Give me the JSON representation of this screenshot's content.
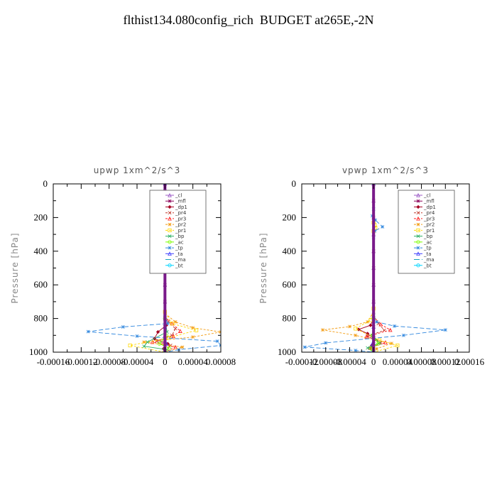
{
  "figure": {
    "title": "flthist134.080config_rich  BUDGET at265E,-2N"
  },
  "chart_data": [
    {
      "type": "line",
      "title": "upwp   1xm^2/s^3",
      "xlabel": "",
      "ylabel": "Pressure [hPa]",
      "ylim": [
        0,
        1000
      ],
      "y_inverted": true,
      "xlim": [
        -0.00016,
        8e-05
      ],
      "x_tick_values": [
        -0.00016,
        -0.00012,
        -8e-05,
        -4e-05,
        0,
        4e-05,
        8e-05
      ],
      "x_tick_labels": [
        "-0.00016",
        "-0.00012",
        "-0.00008",
        "-0.00004",
        "0",
        "0.00004",
        "0.00008"
      ],
      "y_tick_values": [
        0,
        200,
        400,
        600,
        800,
        1000
      ],
      "y_tick_labels": [
        "0",
        "200",
        "400",
        "600",
        "800",
        "1000"
      ],
      "legend_position": "top-right",
      "series": [
        {
          "name": "_cl",
          "color": "#9b59c6",
          "marker": "triangle",
          "dash": "",
          "points": [
            [
              0,
              0
            ],
            [
              0,
              100
            ],
            [
              0,
              200
            ],
            [
              0,
              300
            ],
            [
              0,
              400
            ],
            [
              0,
              500
            ],
            [
              0,
              600
            ],
            [
              0,
              700
            ],
            [
              0,
              800
            ],
            [
              0,
              900
            ],
            [
              0,
              1000
            ]
          ]
        },
        {
          "name": "_mfl",
          "color": "#8b0057",
          "marker": "star",
          "dash": "",
          "points": [
            [
              0,
              0
            ],
            [
              0,
              100
            ],
            [
              0,
              200
            ],
            [
              0,
              300
            ],
            [
              0,
              400
            ],
            [
              0,
              500
            ],
            [
              0,
              600
            ],
            [
              0,
              700
            ],
            [
              0,
              800
            ],
            [
              0,
              850
            ],
            [
              0,
              900
            ],
            [
              0,
              950
            ],
            [
              0,
              1000
            ]
          ]
        },
        {
          "name": "_dp1",
          "color": "#a50021",
          "marker": "diamond",
          "dash": "",
          "points": [
            [
              0,
              800
            ],
            [
              2e-06,
              840
            ],
            [
              -1e-05,
              880
            ],
            [
              -1.5e-05,
              920
            ],
            [
              4e-06,
              950
            ],
            [
              -2e-06,
              980
            ],
            [
              0,
              1000
            ]
          ]
        },
        {
          "name": "_pr4",
          "color": "#c0392b",
          "marker": "cross",
          "dash": "3,2",
          "points": [
            [
              0,
              780
            ],
            [
              5e-06,
              820
            ],
            [
              1.5e-05,
              860
            ],
            [
              1e-05,
              900
            ],
            [
              -1.2e-05,
              935
            ],
            [
              8e-06,
              960
            ],
            [
              0,
              1000
            ]
          ]
        },
        {
          "name": "_pr3",
          "color": "#ff2020",
          "marker": "triangle",
          "dash": "3,2",
          "points": [
            [
              0,
              790
            ],
            [
              1e-05,
              830
            ],
            [
              2.2e-05,
              875
            ],
            [
              1.2e-05,
              905
            ],
            [
              -1.8e-05,
              940
            ],
            [
              1.5e-05,
              970
            ],
            [
              0,
              1000
            ]
          ]
        },
        {
          "name": "_pr2",
          "color": "#f39c12",
          "marker": "star",
          "dash": "3,2",
          "points": [
            [
              0,
              770
            ],
            [
              1.5e-05,
              820
            ],
            [
              4e-05,
              855
            ],
            [
              8e-05,
              880
            ],
            [
              4e-05,
              910
            ],
            [
              -3e-05,
              940
            ],
            [
              2.5e-05,
              970
            ],
            [
              0,
              1000
            ]
          ]
        },
        {
          "name": "_pr1",
          "color": "#ffd700",
          "marker": "square",
          "dash": "3,2",
          "points": [
            [
              0,
              190
            ],
            [
              -5e-06,
              210
            ],
            [
              -6e-06,
              235
            ],
            [
              -4e-06,
              260
            ],
            [
              0,
              300
            ],
            [
              0,
              760
            ],
            [
              1e-05,
              830
            ],
            [
              4.5e-05,
              870
            ],
            [
              5e-06,
              915
            ],
            [
              -5e-05,
              960
            ],
            [
              0,
              1000
            ]
          ]
        },
        {
          "name": "_bp",
          "color": "#27ae60",
          "marker": "cross",
          "dash": "",
          "points": [
            [
              0,
              800
            ],
            [
              3e-06,
              880
            ],
            [
              -2.5e-05,
              940
            ],
            [
              -3e-05,
              965
            ],
            [
              3e-06,
              985
            ],
            [
              0,
              1000
            ]
          ]
        },
        {
          "name": "_ac",
          "color": "#7dff00",
          "marker": "circle",
          "dash": "",
          "points": [
            [
              0,
              800
            ],
            [
              2e-06,
              900
            ],
            [
              -8e-06,
              950
            ],
            [
              6e-06,
              975
            ],
            [
              0,
              1000
            ]
          ]
        },
        {
          "name": "_tp",
          "color": "#2e86de",
          "marker": "star",
          "dash": "6,3",
          "points": [
            [
              0,
              190
            ],
            [
              -2e-06,
              220
            ],
            [
              1e-05,
              235
            ],
            [
              -8e-06,
              330
            ],
            [
              -6e-06,
              380
            ],
            [
              0,
              420
            ],
            [
              0,
              790
            ],
            [
              4e-06,
              830
            ],
            [
              -6e-05,
              850
            ],
            [
              -0.00011,
              878
            ],
            [
              -4e-05,
              905
            ],
            [
              7.5e-05,
              935
            ],
            [
              8e-05,
              960
            ],
            [
              2e-05,
              985
            ],
            [
              0,
              1000
            ]
          ]
        },
        {
          "name": "_ta",
          "color": "#4040ff",
          "marker": "triangle",
          "dash": "",
          "points": [
            [
              0,
              850
            ],
            [
              2e-06,
              950
            ],
            [
              0,
              1000
            ]
          ]
        },
        {
          "name": "_ma",
          "color": "#17a2b8",
          "marker": "none",
          "dash": "8,3",
          "points": [
            [
              0,
              900
            ],
            [
              0,
              1000
            ]
          ]
        },
        {
          "name": "_bt",
          "color": "#00d5ff",
          "marker": "circle",
          "dash": "",
          "points": [
            [
              0,
              0
            ],
            [
              0,
              1000
            ]
          ]
        }
      ]
    },
    {
      "type": "line",
      "title": "vpwp   1xm^2/s^3",
      "xlabel": "",
      "ylabel": "Pressure [hPa]",
      "ylim": [
        0,
        1000
      ],
      "y_inverted": true,
      "xlim": [
        -0.00012,
        0.00016
      ],
      "x_tick_values": [
        -0.00012,
        -8e-05,
        -4e-05,
        0,
        4e-05,
        8e-05,
        0.00012,
        0.00016
      ],
      "x_tick_labels": [
        "-0.00012",
        "-0.00008",
        "-0.00004",
        "0",
        "0.00004",
        "0.00008",
        "0.00012",
        "0.00016"
      ],
      "y_tick_values": [
        0,
        200,
        400,
        600,
        800,
        1000
      ],
      "y_tick_labels": [
        "0",
        "200",
        "400",
        "600",
        "800",
        "1000"
      ],
      "legend_position": "top-right",
      "series": [
        {
          "name": "_cl",
          "color": "#9b59c6",
          "marker": "triangle",
          "dash": "",
          "points": [
            [
              0,
              0
            ],
            [
              0,
              100
            ],
            [
              0,
              200
            ],
            [
              0,
              300
            ],
            [
              0,
              400
            ],
            [
              0,
              500
            ],
            [
              0,
              600
            ],
            [
              0,
              700
            ],
            [
              0,
              800
            ],
            [
              0,
              900
            ],
            [
              0,
              1000
            ]
          ]
        },
        {
          "name": "_mfl",
          "color": "#8b0057",
          "marker": "star",
          "dash": "",
          "points": [
            [
              0,
              0
            ],
            [
              0,
              100
            ],
            [
              0,
              200
            ],
            [
              0,
              300
            ],
            [
              0,
              400
            ],
            [
              0,
              500
            ],
            [
              0,
              600
            ],
            [
              0,
              700
            ],
            [
              0,
              800
            ],
            [
              0,
              850
            ],
            [
              0,
              900
            ],
            [
              0,
              950
            ],
            [
              0,
              1000
            ]
          ]
        },
        {
          "name": "_dp1",
          "color": "#a50021",
          "marker": "diamond",
          "dash": "",
          "points": [
            [
              0,
              800
            ],
            [
              -5e-06,
              840
            ],
            [
              -2.5e-05,
              865
            ],
            [
              -1e-05,
              890
            ],
            [
              2e-06,
              925
            ],
            [
              -3e-06,
              960
            ],
            [
              0,
              1000
            ]
          ]
        },
        {
          "name": "_pr4",
          "color": "#c0392b",
          "marker": "cross",
          "dash": "3,2",
          "points": [
            [
              0,
              780
            ],
            [
              8e-06,
              830
            ],
            [
              1.8e-05,
              870
            ],
            [
              -1e-05,
              905
            ],
            [
              1.2e-05,
              945
            ],
            [
              -4e-06,
              975
            ],
            [
              0,
              1000
            ]
          ]
        },
        {
          "name": "_pr3",
          "color": "#ff2020",
          "marker": "triangle",
          "dash": "3,2",
          "points": [
            [
              0,
              790
            ],
            [
              1.2e-05,
              835
            ],
            [
              2.8e-05,
              868
            ],
            [
              -1.2e-05,
              908
            ],
            [
              2e-05,
              942
            ],
            [
              -6e-06,
              975
            ],
            [
              0,
              1000
            ]
          ]
        },
        {
          "name": "_pr2",
          "color": "#f39c12",
          "marker": "star",
          "dash": "3,2",
          "points": [
            [
              0,
              760
            ],
            [
              -1e-05,
              820
            ],
            [
              -4e-05,
              848
            ],
            [
              -8.5e-05,
              868
            ],
            [
              -3e-05,
              900
            ],
            [
              3e-05,
              948
            ],
            [
              5e-06,
              980
            ],
            [
              0,
              1000
            ]
          ]
        },
        {
          "name": "_pr1",
          "color": "#ffd700",
          "marker": "square",
          "dash": "3,2",
          "points": [
            [
              0,
              230
            ],
            [
              2e-06,
              245
            ],
            [
              3e-06,
              260
            ],
            [
              0,
              280
            ],
            [
              0,
              740
            ],
            [
              -5e-06,
              810
            ],
            [
              -3e-05,
              860
            ],
            [
              1e-05,
              930
            ],
            [
              4e-05,
              960
            ],
            [
              0,
              1000
            ]
          ]
        },
        {
          "name": "_bp",
          "color": "#27ae60",
          "marker": "cross",
          "dash": "",
          "points": [
            [
              0,
              800
            ],
            [
              -2e-06,
              900
            ],
            [
              1e-05,
              945
            ],
            [
              -1e-05,
              975
            ],
            [
              0,
              1000
            ]
          ]
        },
        {
          "name": "_ac",
          "color": "#7dff00",
          "marker": "circle",
          "dash": "",
          "points": [
            [
              0,
              800
            ],
            [
              -2e-06,
              900
            ],
            [
              8e-06,
              950
            ],
            [
              -4e-06,
              980
            ],
            [
              0,
              1000
            ]
          ]
        },
        {
          "name": "_tp",
          "color": "#2e86de",
          "marker": "star",
          "dash": "6,3",
          "points": [
            [
              0,
              150
            ],
            [
              -2e-06,
              190
            ],
            [
              3e-06,
              215
            ],
            [
              1.5e-05,
              255
            ],
            [
              2e-06,
              280
            ],
            [
              0,
              320
            ],
            [
              0,
              780
            ],
            [
              5e-06,
              820
            ],
            [
              3.5e-05,
              845
            ],
            [
              0.00012,
              868
            ],
            [
              5e-05,
              900
            ],
            [
              -8e-05,
              945
            ],
            [
              -0.000115,
              970
            ],
            [
              -3e-05,
              990
            ],
            [
              0,
              1000
            ]
          ]
        },
        {
          "name": "_ta",
          "color": "#4040ff",
          "marker": "triangle",
          "dash": "",
          "points": [
            [
              0,
              850
            ],
            [
              -2e-06,
              950
            ],
            [
              0,
              1000
            ]
          ]
        },
        {
          "name": "_ma",
          "color": "#17a2b8",
          "marker": "none",
          "dash": "8,3",
          "points": [
            [
              0,
              900
            ],
            [
              0,
              1000
            ]
          ]
        },
        {
          "name": "_bt",
          "color": "#00d5ff",
          "marker": "circle",
          "dash": "",
          "points": [
            [
              0,
              0
            ],
            [
              0,
              1000
            ]
          ]
        }
      ]
    }
  ]
}
